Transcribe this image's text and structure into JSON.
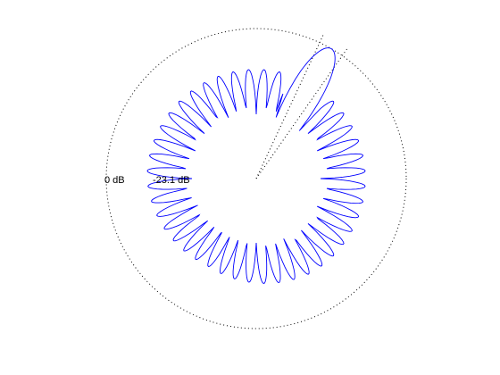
{
  "chart_data": {
    "type": "polar",
    "scale": "dB",
    "ring_labels": [
      "0 dB",
      "-23.1 dB"
    ],
    "min_db": -23.1,
    "max_db": 0,
    "main_beam": {
      "direction_deg": 60,
      "level_db": 0,
      "beamwidth_deg": 12
    },
    "sidelobe_level_db": -11,
    "null_level_db": -23.1,
    "beam_boundary_lines_deg": [
      55,
      65
    ],
    "colors": {
      "pattern": "#0000ff",
      "grid": "#000000"
    },
    "grid": true
  }
}
